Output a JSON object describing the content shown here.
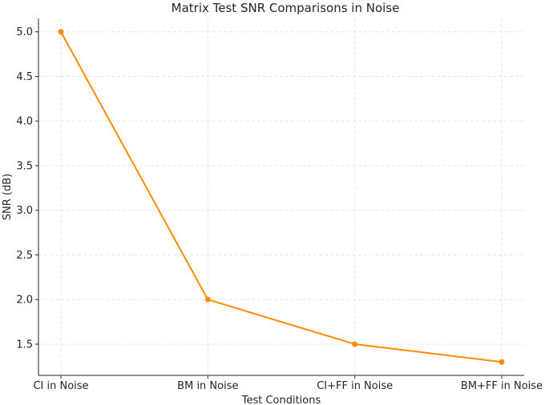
{
  "chart_data": {
    "type": "line",
    "title": "Matrix Test SNR Comparisons in Noise",
    "xlabel": "Test Conditions",
    "ylabel": "SNR (dB)",
    "categories": [
      "CI in Noise",
      "BM in Noise",
      "CI+FF in Noise",
      "BM+FF in Noise"
    ],
    "series": [
      {
        "values": [
          5.0,
          2.0,
          1.5,
          1.3
        ],
        "color": "#ff8c00"
      }
    ],
    "yticks": [
      "1.5",
      "2.0",
      "2.5",
      "3.0",
      "3.5",
      "4.0",
      "4.5",
      "5.0"
    ],
    "ylim": [
      1.15,
      5.15
    ],
    "grid": true,
    "legend": false
  }
}
